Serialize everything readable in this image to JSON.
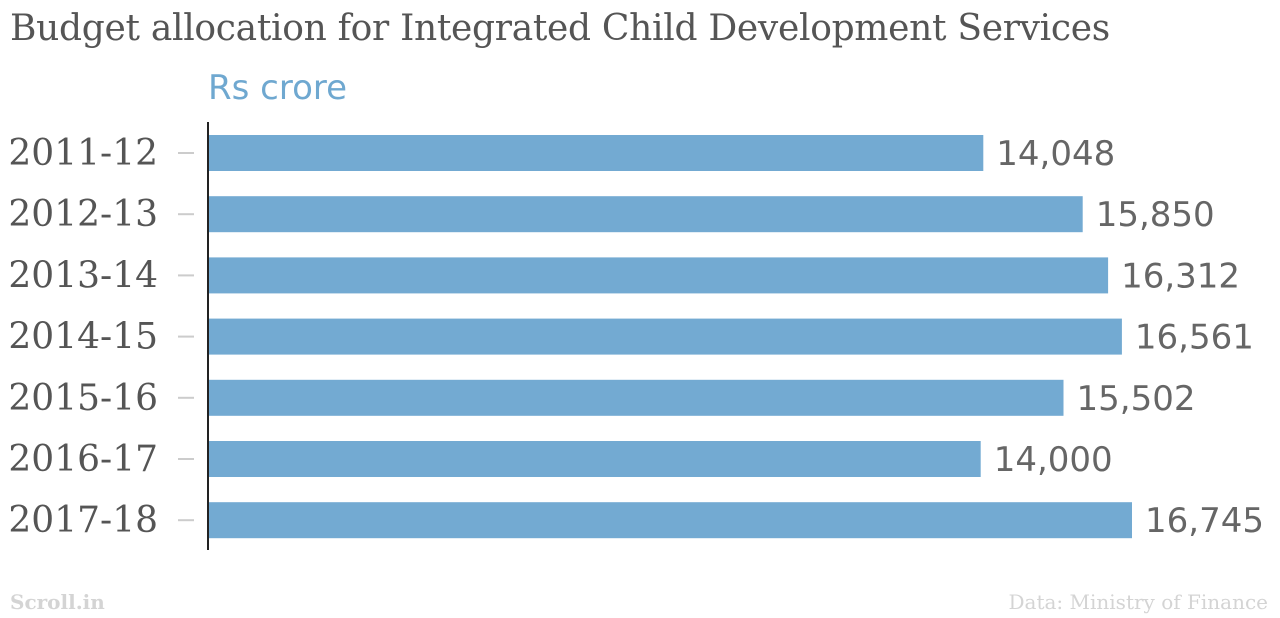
{
  "chart_data": {
    "type": "bar",
    "orientation": "horizontal",
    "title": "Budget allocation for Integrated Child Development Services",
    "unit_label": "Rs crore",
    "categories": [
      "2011-12",
      "2012-13",
      "2013-14",
      "2014-15",
      "2015-16",
      "2016-17",
      "2017-18"
    ],
    "values": [
      14048,
      15850,
      16312,
      16561,
      15502,
      14000,
      16745
    ],
    "value_labels": [
      "14,048",
      "15,850",
      "16,312",
      "16,561",
      "15,502",
      "14,000",
      "16,745"
    ],
    "xlim": [
      0,
      16745
    ],
    "bar_color": "#73aad2",
    "grid": false,
    "legend": "none"
  },
  "footer": {
    "credit": "Scroll.in",
    "source": "Data: Ministry of Finance"
  }
}
